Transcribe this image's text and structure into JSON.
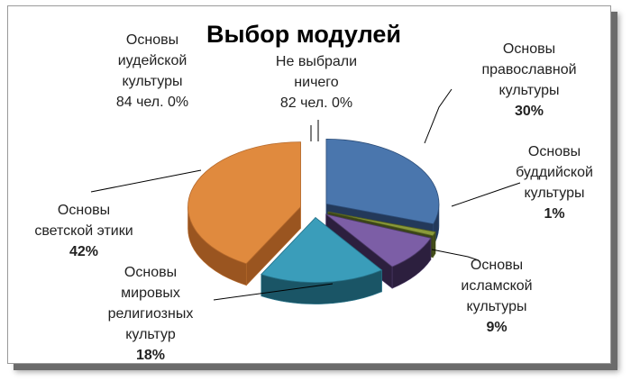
{
  "chart_data": {
    "type": "pie",
    "title": "Выбор модулей",
    "slices": [
      {
        "label_lines": [
          "Основы",
          "православной",
          "культуры"
        ],
        "value_text": "30%",
        "value": 30,
        "color": "#4a76ad",
        "side": "#23395a",
        "edge": "#2d4d78"
      },
      {
        "label_lines": [
          "Основы",
          "буддийской",
          "культуры"
        ],
        "value_text": "1%",
        "value": 1,
        "color": "#8a9a3a",
        "side": "#3a4418",
        "edge": "#56621f"
      },
      {
        "label_lines": [
          "Основы",
          "исламской",
          "культуры"
        ],
        "value_text": "9%",
        "value": 9,
        "color": "#7c5ea6",
        "side": "#2c1f3e",
        "edge": "#4d3a69"
      },
      {
        "label_lines": [
          "Основы",
          "мировых",
          "религиозных",
          "культур"
        ],
        "value_text": "18%",
        "value": 18,
        "color": "#3a9dba",
        "side": "#1a5566",
        "edge": "#26738a"
      },
      {
        "label_lines": [
          "Основы",
          "светской этики"
        ],
        "value_text": "42%",
        "value": 42,
        "color": "#e08a3e",
        "side": "#9a5520",
        "edge": "#b5692c"
      },
      {
        "label_lines": [
          "Основы",
          "иудейской",
          "культуры",
          "84 чел.  0%"
        ],
        "value_text": "",
        "value": 0,
        "color": "#c0504d",
        "side": "#7a2f2d",
        "edge": "#7a2f2d"
      },
      {
        "label_lines": [
          "Не выбрали",
          "ничего",
          "82 чел.  0%"
        ],
        "value_text": "",
        "value": 0,
        "color": "#9bbb59",
        "side": "#5f7836",
        "edge": "#5f7836"
      }
    ]
  }
}
